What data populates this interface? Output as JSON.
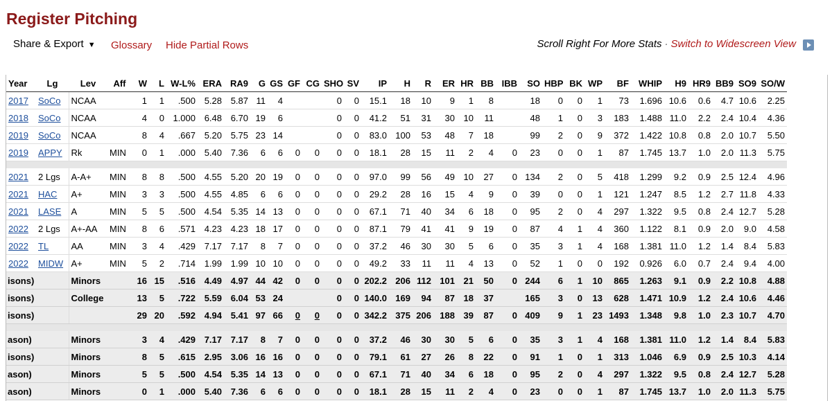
{
  "title": "Register Pitching",
  "toolbar": {
    "share_label": "Share & Export",
    "share_caret": "▼",
    "glossary": "Glossary",
    "hide_partial": "Hide Partial Rows",
    "scroll_hint": "Scroll Right For More Stats",
    "separator": "·",
    "widescreen": "Switch to Widescreen View"
  },
  "columns": [
    "Year",
    "Lg",
    "Lev",
    "Aff",
    "W",
    "L",
    "W-L%",
    "ERA",
    "RA9",
    "G",
    "GS",
    "GF",
    "CG",
    "SHO",
    "SV",
    "IP",
    "H",
    "R",
    "ER",
    "HR",
    "BB",
    "IBB",
    "SO",
    "HBP",
    "BK",
    "WP",
    "BF",
    "WHIP",
    "H9",
    "HR9",
    "BB9",
    "SO9",
    "SO/W"
  ],
  "group1": [
    [
      "2017",
      "SoCo",
      "NCAA",
      "",
      "1",
      "1",
      ".500",
      "5.28",
      "5.87",
      "11",
      "4",
      "",
      "",
      "0",
      "0",
      "15.1",
      "18",
      "10",
      "9",
      "1",
      "8",
      "",
      "18",
      "0",
      "0",
      "1",
      "73",
      "1.696",
      "10.6",
      "0.6",
      "4.7",
      "10.6",
      "2.25"
    ],
    [
      "2018",
      "SoCo",
      "NCAA",
      "",
      "4",
      "0",
      "1.000",
      "6.48",
      "6.70",
      "19",
      "6",
      "",
      "",
      "0",
      "0",
      "41.2",
      "51",
      "31",
      "30",
      "10",
      "11",
      "",
      "48",
      "1",
      "0",
      "3",
      "183",
      "1.488",
      "11.0",
      "2.2",
      "2.4",
      "10.4",
      "4.36"
    ],
    [
      "2019",
      "SoCo",
      "NCAA",
      "",
      "8",
      "4",
      ".667",
      "5.20",
      "5.75",
      "23",
      "14",
      "",
      "",
      "0",
      "0",
      "83.0",
      "100",
      "53",
      "48",
      "7",
      "18",
      "",
      "99",
      "2",
      "0",
      "9",
      "372",
      "1.422",
      "10.8",
      "0.8",
      "2.0",
      "10.7",
      "5.50"
    ],
    [
      "2019",
      "APPY",
      "Rk",
      "MIN",
      "0",
      "1",
      ".000",
      "5.40",
      "7.36",
      "6",
      "6",
      "0",
      "0",
      "0",
      "0",
      "18.1",
      "28",
      "15",
      "11",
      "2",
      "4",
      "0",
      "23",
      "0",
      "0",
      "1",
      "87",
      "1.745",
      "13.7",
      "1.0",
      "2.0",
      "11.3",
      "5.75"
    ]
  ],
  "group2": [
    [
      "2021",
      "2 Lgs",
      "A-A+",
      "MIN",
      "8",
      "8",
      ".500",
      "4.55",
      "5.20",
      "20",
      "19",
      "0",
      "0",
      "0",
      "0",
      "97.0",
      "99",
      "56",
      "49",
      "10",
      "27",
      "0",
      "134",
      "2",
      "0",
      "5",
      "418",
      "1.299",
      "9.2",
      "0.9",
      "2.5",
      "12.4",
      "4.96"
    ],
    [
      "2021",
      "HAC",
      "A+",
      "MIN",
      "3",
      "3",
      ".500",
      "4.55",
      "4.85",
      "6",
      "6",
      "0",
      "0",
      "0",
      "0",
      "29.2",
      "28",
      "16",
      "15",
      "4",
      "9",
      "0",
      "39",
      "0",
      "0",
      "1",
      "121",
      "1.247",
      "8.5",
      "1.2",
      "2.7",
      "11.8",
      "4.33"
    ],
    [
      "2021",
      "LASE",
      "A",
      "MIN",
      "5",
      "5",
      ".500",
      "4.54",
      "5.35",
      "14",
      "13",
      "0",
      "0",
      "0",
      "0",
      "67.1",
      "71",
      "40",
      "34",
      "6",
      "18",
      "0",
      "95",
      "2",
      "0",
      "4",
      "297",
      "1.322",
      "9.5",
      "0.8",
      "2.4",
      "12.7",
      "5.28"
    ],
    [
      "2022",
      "2 Lgs",
      "A+-AA",
      "MIN",
      "8",
      "6",
      ".571",
      "4.23",
      "4.23",
      "18",
      "17",
      "0",
      "0",
      "0",
      "0",
      "87.1",
      "79",
      "41",
      "41",
      "9",
      "19",
      "0",
      "87",
      "4",
      "1",
      "4",
      "360",
      "1.122",
      "8.1",
      "0.9",
      "2.0",
      "9.0",
      "4.58"
    ],
    [
      "2022",
      "TL",
      "AA",
      "MIN",
      "3",
      "4",
      ".429",
      "7.17",
      "7.17",
      "8",
      "7",
      "0",
      "0",
      "0",
      "0",
      "37.2",
      "46",
      "30",
      "30",
      "5",
      "6",
      "0",
      "35",
      "3",
      "1",
      "4",
      "168",
      "1.381",
      "11.0",
      "1.2",
      "1.4",
      "8.4",
      "5.83"
    ],
    [
      "2022",
      "MIDW",
      "A+",
      "MIN",
      "5",
      "2",
      ".714",
      "1.99",
      "1.99",
      "10",
      "10",
      "0",
      "0",
      "0",
      "0",
      "49.2",
      "33",
      "11",
      "11",
      "4",
      "13",
      "0",
      "52",
      "1",
      "0",
      "0",
      "192",
      "0.926",
      "6.0",
      "0.7",
      "2.4",
      "9.4",
      "4.00"
    ]
  ],
  "totals1": [
    [
      "isons)",
      "Minors",
      "",
      "16",
      "15",
      ".516",
      "4.49",
      "4.97",
      "44",
      "42",
      "0",
      "0",
      "0",
      "0",
      "202.2",
      "206",
      "112",
      "101",
      "21",
      "50",
      "0",
      "244",
      "6",
      "1",
      "10",
      "865",
      "1.263",
      "9.1",
      "0.9",
      "2.2",
      "10.8",
      "4.88"
    ],
    [
      "isons)",
      "College",
      "",
      "13",
      "5",
      ".722",
      "5.59",
      "6.04",
      "53",
      "24",
      "",
      "",
      "0",
      "0",
      "140.0",
      "169",
      "94",
      "87",
      "18",
      "37",
      "",
      "165",
      "3",
      "0",
      "13",
      "628",
      "1.471",
      "10.9",
      "1.2",
      "2.4",
      "10.6",
      "4.46"
    ],
    [
      "isons)",
      "",
      "",
      "29",
      "20",
      ".592",
      "4.94",
      "5.41",
      "97",
      "66",
      "0",
      "0",
      "0",
      "0",
      "342.2",
      "375",
      "206",
      "188",
      "39",
      "87",
      "0",
      "409",
      "9",
      "1",
      "23",
      "1493",
      "1.348",
      "9.8",
      "1.0",
      "2.3",
      "10.7",
      "4.70"
    ]
  ],
  "totals2": [
    [
      "ason)",
      "Minors",
      "",
      "3",
      "4",
      ".429",
      "7.17",
      "7.17",
      "8",
      "7",
      "0",
      "0",
      "0",
      "0",
      "37.2",
      "46",
      "30",
      "30",
      "5",
      "6",
      "0",
      "35",
      "3",
      "1",
      "4",
      "168",
      "1.381",
      "11.0",
      "1.2",
      "1.4",
      "8.4",
      "5.83"
    ],
    [
      "isons)",
      "Minors",
      "",
      "8",
      "5",
      ".615",
      "2.95",
      "3.06",
      "16",
      "16",
      "0",
      "0",
      "0",
      "0",
      "79.1",
      "61",
      "27",
      "26",
      "8",
      "22",
      "0",
      "91",
      "1",
      "0",
      "1",
      "313",
      "1.046",
      "6.9",
      "0.9",
      "2.5",
      "10.3",
      "4.14"
    ],
    [
      "ason)",
      "Minors",
      "",
      "5",
      "5",
      ".500",
      "4.54",
      "5.35",
      "14",
      "13",
      "0",
      "0",
      "0",
      "0",
      "67.1",
      "71",
      "40",
      "34",
      "6",
      "18",
      "0",
      "95",
      "2",
      "0",
      "4",
      "297",
      "1.322",
      "9.5",
      "0.8",
      "2.4",
      "12.7",
      "5.28"
    ],
    [
      "ason)",
      "Minors",
      "",
      "0",
      "1",
      ".000",
      "5.40",
      "7.36",
      "6",
      "6",
      "0",
      "0",
      "0",
      "0",
      "18.1",
      "28",
      "15",
      "11",
      "2",
      "4",
      "0",
      "23",
      "0",
      "0",
      "1",
      "87",
      "1.745",
      "13.7",
      "1.0",
      "2.0",
      "11.3",
      "5.75"
    ]
  ],
  "colors": {
    "title": "#8b1a1a",
    "link": "#b01a1a",
    "table_link": "#1e4f9c"
  }
}
